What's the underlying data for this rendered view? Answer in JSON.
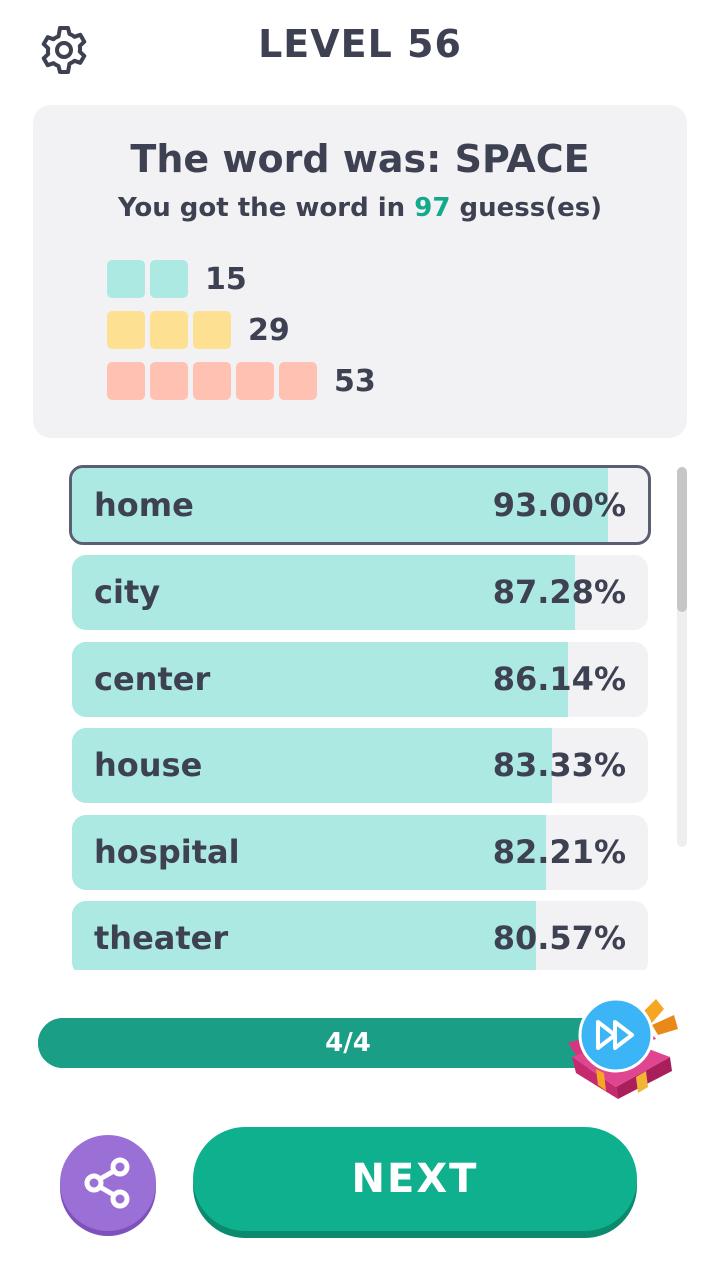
{
  "header": {
    "level_title": "LEVEL 56"
  },
  "result": {
    "title": "The word was: SPACE",
    "sub_before": "You got the word in ",
    "guess_count": "97",
    "sub_after": " guess(es)",
    "legend": [
      {
        "squares": 2,
        "color": "green",
        "count": "15"
      },
      {
        "squares": 3,
        "color": "yellow",
        "count": "29"
      },
      {
        "squares": 5,
        "color": "red",
        "count": "53"
      }
    ]
  },
  "guesses": [
    {
      "word": "home",
      "percent": "93.00%",
      "fill": 0.93,
      "selected": true
    },
    {
      "word": "city",
      "percent": "87.28%",
      "fill": 0.8728,
      "selected": false
    },
    {
      "word": "center",
      "percent": "86.14%",
      "fill": 0.8614,
      "selected": false
    },
    {
      "word": "house",
      "percent": "83.33%",
      "fill": 0.8333,
      "selected": false
    },
    {
      "word": "hospital",
      "percent": "82.21%",
      "fill": 0.8221,
      "selected": false
    },
    {
      "word": "theater",
      "percent": "80.57%",
      "fill": 0.8057,
      "selected": false
    }
  ],
  "progress": {
    "label": "4/4",
    "value": 1.0
  },
  "buttons": {
    "next_label": "NEXT"
  },
  "icons": {
    "settings": "gear-icon",
    "share": "share-icon",
    "reward": "gift-box-icon",
    "skip": "fast-forward-icon"
  },
  "colors": {
    "accent": "#0fb08e",
    "share": "#9a6fd6",
    "green": "#ace9e2",
    "yellow": "#fee093",
    "red": "#ffc1b2"
  }
}
